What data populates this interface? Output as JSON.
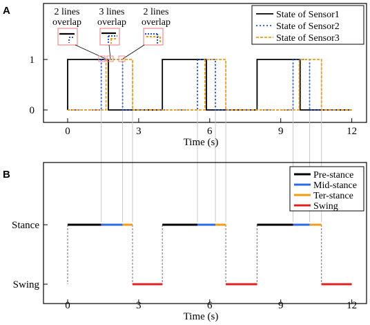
{
  "panels": {
    "A": {
      "letter": "A"
    },
    "B": {
      "letter": "B"
    }
  },
  "colors": {
    "sensor1": "#000000",
    "sensor2": "#1f4fe0",
    "sensor3": "#f39c12",
    "pre_stance": "#000000",
    "mid_stance": "#2a6ae8",
    "ter_stance": "#f39c12",
    "swing": "#e02020",
    "guide": "#c8c8c8",
    "inset_border": "#ef8a8a"
  },
  "annotations": [
    {
      "line1": "2 lines",
      "line2": "overlap"
    },
    {
      "line1": "3 lines",
      "line2": "overlap"
    },
    {
      "line1": "2 lines",
      "line2": "overlap"
    }
  ],
  "chart_data": [
    {
      "type": "line",
      "panel": "A",
      "xlabel": "Time (s)",
      "ylabel": "",
      "xlim": [
        -0.6,
        12.6
      ],
      "ylim": [
        -0.1,
        1.1
      ],
      "xticks": [
        0,
        3,
        6,
        9,
        12
      ],
      "yticks": [
        0,
        1
      ],
      "legend_position": "top-right",
      "series": [
        {
          "name": "State of Sensor1",
          "style": "solid",
          "x": [
            0,
            0,
            1.72,
            1.72,
            4.0,
            4.0,
            5.86,
            5.86,
            8.0,
            8.0,
            9.82,
            9.82,
            12.0
          ],
          "y": [
            0,
            1,
            1,
            0,
            0,
            1,
            1,
            0,
            0,
            1,
            1,
            0,
            0
          ]
        },
        {
          "name": "State of Sensor2",
          "style": "dotted",
          "x": [
            0,
            1.42,
            1.42,
            2.32,
            2.32,
            5.48,
            5.48,
            6.24,
            6.24,
            9.52,
            9.52,
            10.22,
            10.22,
            12.0
          ],
          "y": [
            0,
            0,
            1,
            1,
            0,
            0,
            1,
            1,
            0,
            0,
            1,
            1,
            0,
            0
          ]
        },
        {
          "name": "State of Sensor3",
          "style": "dashed",
          "x": [
            0,
            1.62,
            1.62,
            2.74,
            2.74,
            5.8,
            5.8,
            6.68,
            6.68,
            9.78,
            9.78,
            10.72,
            10.72,
            12.0
          ],
          "y": [
            0,
            0,
            1,
            1,
            0,
            0,
            1,
            1,
            0,
            0,
            1,
            1,
            0,
            0
          ]
        }
      ]
    },
    {
      "type": "line",
      "panel": "B",
      "xlabel": "Time (s)",
      "ylabel": "",
      "xlim": [
        -0.6,
        12.6
      ],
      "xticks": [
        0,
        3,
        6,
        9,
        12
      ],
      "yticks": [
        "Swing",
        "Stance"
      ],
      "legend_position": "top-right",
      "series": [
        {
          "name": "Pre-stance",
          "segments": [
            [
              0,
              1.42
            ],
            [
              4.0,
              5.48
            ],
            [
              8.0,
              9.52
            ]
          ]
        },
        {
          "name": "Mid-stance",
          "segments": [
            [
              1.42,
              2.32
            ],
            [
              5.48,
              6.24
            ],
            [
              9.52,
              10.22
            ]
          ]
        },
        {
          "name": "Ter-stance",
          "segments": [
            [
              2.32,
              2.74
            ],
            [
              6.24,
              6.68
            ],
            [
              10.22,
              10.72
            ]
          ]
        },
        {
          "name": "Swing",
          "segments": [
            [
              2.74,
              4.0
            ],
            [
              6.68,
              8.0
            ],
            [
              10.72,
              12.0
            ]
          ]
        }
      ]
    }
  ]
}
